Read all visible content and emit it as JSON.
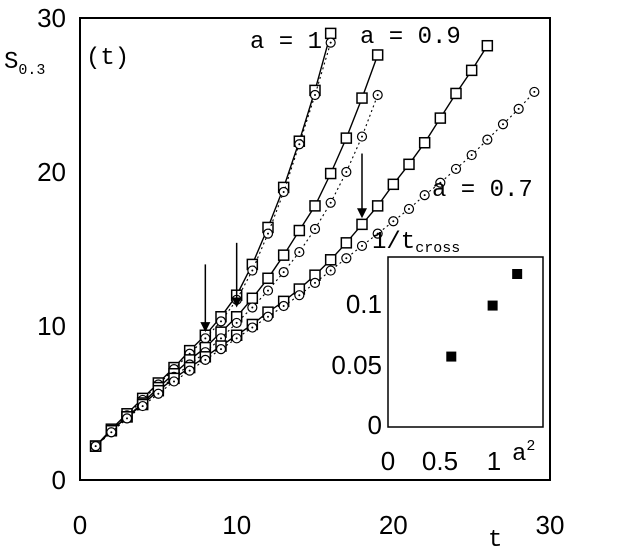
{
  "chart_data": [
    {
      "type": "scatter",
      "ylabel": "S",
      "ylabel_sub": "0.3",
      "ylabel_suffix": "(t)",
      "xlabel": "t",
      "xlim": [
        0,
        30
      ],
      "ylim": [
        0,
        30
      ],
      "xticks": [
        "0",
        "10",
        "20",
        "30"
      ],
      "yticks": [
        "0",
        "10",
        "20",
        "30"
      ],
      "annotations": [
        {
          "text": "a = 1",
          "x": 16,
          "y": 28.5
        },
        {
          "text": "a = 0.9",
          "x": 22,
          "y": 28.5
        },
        {
          "text": "a = 0.7",
          "x": 24,
          "y": 19.2
        }
      ],
      "arrows": [
        {
          "x": 8,
          "y_from": 14.0,
          "y_to": 9.6
        },
        {
          "x": 10,
          "y_from": 15.4,
          "y_to": 11.2
        },
        {
          "x": 18,
          "y_from": 21.2,
          "y_to": 17.0
        }
      ],
      "series": [
        {
          "marker": "square",
          "line": "solid",
          "x": [
            1,
            2,
            3,
            4,
            5,
            6,
            7,
            8,
            9,
            10,
            11,
            12,
            13,
            14,
            15,
            16
          ],
          "y": [
            2.2,
            3.3,
            4.3,
            5.3,
            6.3,
            7.3,
            8.4,
            9.4,
            10.6,
            12.0,
            14.0,
            16.4,
            19.0,
            22.0,
            25.3,
            29.0
          ]
        },
        {
          "marker": "circle",
          "line": "dotted",
          "x": [
            1,
            2,
            3,
            4,
            5,
            6,
            7,
            8,
            9,
            10,
            11,
            12,
            13,
            14,
            15,
            16
          ],
          "y": [
            2.2,
            3.2,
            4.2,
            5.2,
            6.2,
            7.2,
            8.2,
            9.2,
            10.3,
            11.7,
            13.6,
            16.0,
            18.7,
            21.8,
            25.0,
            28.4
          ]
        },
        {
          "marker": "square",
          "line": "solid",
          "x": [
            1,
            2,
            3,
            4,
            5,
            6,
            7,
            8,
            9,
            10,
            11,
            12,
            13,
            14,
            15,
            16,
            17,
            18,
            19
          ],
          "y": [
            2.2,
            3.2,
            4.1,
            5.0,
            6.0,
            6.9,
            7.8,
            8.6,
            9.6,
            10.6,
            11.8,
            13.1,
            14.6,
            16.2,
            17.8,
            19.9,
            22.2,
            24.8,
            27.6
          ]
        },
        {
          "marker": "circle",
          "line": "dotted",
          "x": [
            1,
            2,
            3,
            4,
            5,
            6,
            7,
            8,
            9,
            10,
            11,
            12,
            13,
            14,
            15,
            16,
            17,
            18,
            19
          ],
          "y": [
            2.2,
            3.1,
            4.0,
            4.9,
            5.8,
            6.7,
            7.5,
            8.3,
            9.2,
            10.2,
            11.2,
            12.3,
            13.5,
            14.8,
            16.3,
            18.0,
            20.0,
            22.3,
            25.0
          ]
        },
        {
          "marker": "square",
          "line": "solid",
          "x": [
            1,
            2,
            3,
            4,
            5,
            6,
            7,
            8,
            9,
            10,
            11,
            12,
            13,
            14,
            15,
            16,
            17,
            18,
            19,
            20,
            21,
            22,
            23,
            24,
            25,
            26
          ],
          "y": [
            2.2,
            3.2,
            4.1,
            4.9,
            5.8,
            6.6,
            7.3,
            8.0,
            8.7,
            9.4,
            10.1,
            10.9,
            11.6,
            12.4,
            13.3,
            14.3,
            15.4,
            16.6,
            17.8,
            19.2,
            20.5,
            21.9,
            23.5,
            25.1,
            26.6,
            28.2
          ]
        },
        {
          "marker": "circle",
          "line": "dotted",
          "x": [
            1,
            2,
            3,
            4,
            5,
            6,
            7,
            8,
            9,
            10,
            11,
            12,
            13,
            14,
            15,
            16,
            17,
            18,
            19,
            20,
            21,
            22,
            23,
            24,
            25,
            26,
            27,
            28,
            29
          ],
          "y": [
            2.2,
            3.1,
            4.0,
            4.8,
            5.6,
            6.4,
            7.1,
            7.8,
            8.5,
            9.2,
            9.9,
            10.6,
            11.3,
            12.0,
            12.8,
            13.6,
            14.4,
            15.2,
            16.0,
            16.8,
            17.6,
            18.5,
            19.3,
            20.2,
            21.1,
            22.1,
            23.1,
            24.1,
            25.2
          ]
        }
      ]
    },
    {
      "type": "scatter",
      "inset": true,
      "ylabel": "1/t",
      "ylabel_sub": "cross",
      "xlabel": "a",
      "xlabel_sup": "2",
      "xlim": [
        0,
        1.2
      ],
      "ylim": [
        0,
        0.14
      ],
      "xticks": [
        "0",
        "0.5",
        "1"
      ],
      "yticks": [
        "0",
        "0.05",
        "0.1"
      ],
      "series": [
        {
          "marker": "filled-square",
          "x": [
            0.49,
            0.81,
            1.0
          ],
          "y": [
            0.058,
            0.1,
            0.126
          ]
        }
      ]
    }
  ]
}
